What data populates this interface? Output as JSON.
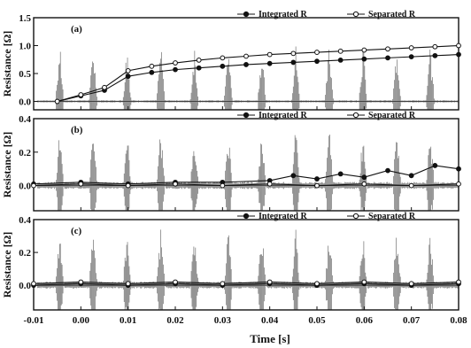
{
  "chart_data": [
    {
      "type": "line",
      "panel_label": "(a)",
      "ylabel": "Resistance [Ω]",
      "xlabel": "",
      "xlim": [
        -0.01,
        0.08
      ],
      "ylim": [
        -0.15,
        1.5
      ],
      "y_ticks": [
        "0.0",
        "0.5",
        "1.0",
        "1.5"
      ],
      "x_ticks": [],
      "legend_position": "top-right",
      "series": [
        {
          "name": "Integrated R",
          "marker": "filled-circle",
          "x": [
            -0.005,
            0.0,
            0.005,
            0.01,
            0.015,
            0.02,
            0.025,
            0.03,
            0.035,
            0.04,
            0.045,
            0.05,
            0.055,
            0.06,
            0.065,
            0.07,
            0.075,
            0.08
          ],
          "y": [
            0.0,
            0.1,
            0.2,
            0.45,
            0.52,
            0.57,
            0.6,
            0.63,
            0.66,
            0.68,
            0.7,
            0.72,
            0.74,
            0.76,
            0.78,
            0.8,
            0.82,
            0.84
          ]
        },
        {
          "name": "Separated R",
          "marker": "open-circle",
          "x": [
            -0.005,
            0.0,
            0.005,
            0.01,
            0.015,
            0.02,
            0.025,
            0.03,
            0.035,
            0.04,
            0.045,
            0.05,
            0.055,
            0.06,
            0.065,
            0.07,
            0.075,
            0.08
          ],
          "y": [
            0.0,
            0.12,
            0.25,
            0.55,
            0.63,
            0.69,
            0.74,
            0.78,
            0.81,
            0.84,
            0.86,
            0.88,
            0.9,
            0.92,
            0.94,
            0.96,
            0.98,
            1.0
          ]
        }
      ]
    },
    {
      "type": "line",
      "panel_label": "(b)",
      "ylabel": "Resistance [Ω]",
      "xlabel": "",
      "xlim": [
        -0.01,
        0.08
      ],
      "ylim": [
        -0.15,
        0.4
      ],
      "y_ticks": [
        "0.0",
        "0.2",
        "0.4"
      ],
      "x_ticks": [],
      "legend_position": "top-right",
      "series": [
        {
          "name": "Integrated R",
          "marker": "filled-circle",
          "x": [
            -0.01,
            0.0,
            0.01,
            0.02,
            0.03,
            0.04,
            0.045,
            0.05,
            0.055,
            0.06,
            0.065,
            0.07,
            0.075,
            0.08
          ],
          "y": [
            0.01,
            0.02,
            0.01,
            0.02,
            0.02,
            0.03,
            0.06,
            0.04,
            0.07,
            0.05,
            0.09,
            0.06,
            0.12,
            0.1
          ]
        },
        {
          "name": "Separated R",
          "marker": "open-circle",
          "x": [
            -0.01,
            0.0,
            0.01,
            0.02,
            0.03,
            0.04,
            0.05,
            0.06,
            0.07,
            0.08
          ],
          "y": [
            0.0,
            0.01,
            0.0,
            0.01,
            0.0,
            0.01,
            0.0,
            0.01,
            0.0,
            0.01
          ]
        }
      ]
    },
    {
      "type": "line",
      "panel_label": "(c)",
      "ylabel": "Resistance [Ω]",
      "xlabel": "Time [s]",
      "xlim": [
        -0.01,
        0.08
      ],
      "ylim": [
        -0.15,
        0.4
      ],
      "y_ticks": [
        "0.0",
        "0.2",
        "0.4"
      ],
      "x_ticks": [
        "-0.01",
        "0.00",
        "0.01",
        "0.02",
        "0.03",
        "0.04",
        "0.05",
        "0.06",
        "0.07",
        "0.08"
      ],
      "legend_position": "top-right",
      "series": [
        {
          "name": "Integrated R",
          "marker": "filled-circle",
          "x": [
            -0.01,
            0.0,
            0.01,
            0.02,
            0.03,
            0.04,
            0.05,
            0.06,
            0.07,
            0.08
          ],
          "y": [
            0.0,
            0.01,
            0.0,
            0.01,
            0.0,
            0.01,
            0.0,
            0.01,
            0.0,
            0.01
          ]
        },
        {
          "name": "Separated R",
          "marker": "open-circle",
          "x": [
            -0.01,
            0.0,
            0.01,
            0.02,
            0.03,
            0.04,
            0.05,
            0.06,
            0.07,
            0.08
          ],
          "y": [
            0.01,
            0.02,
            0.01,
            0.02,
            0.01,
            0.02,
            0.01,
            0.02,
            0.01,
            0.02
          ]
        }
      ]
    }
  ]
}
